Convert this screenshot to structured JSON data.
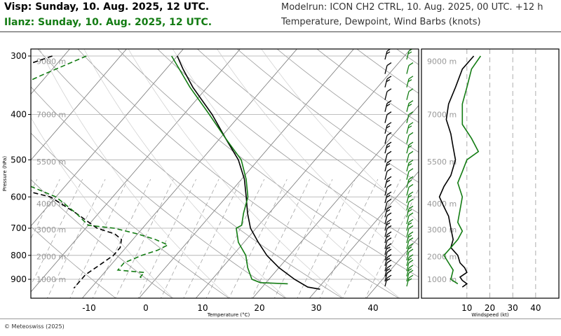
{
  "header": {
    "site1": "Visp: Sunday, 10. Aug. 2025, 12 UTC.",
    "site2": "Ilanz: Sunday, 10. Aug. 2025, 12 UTC.",
    "model": "Modelrun: ICON CH2 CTRL, 10. Aug. 2025, 00 UTC. +12 h",
    "desc": "Temperature, Dewpoint, Wind Barbs (knots)",
    "site1_color": "#000000",
    "site2_color": "#137c13"
  },
  "copyright": "© Meteoswiss (2025)",
  "chart_data": [
    {
      "type": "line",
      "subtype": "skew-t log-p diagram",
      "xlabel": "Temperature (°C)",
      "ylabel": "Pressure (hPa)",
      "xlim": [
        -20,
        48
      ],
      "ylim": [
        950,
        295
      ],
      "y_scale": "log",
      "x_ticks": [
        "-10",
        "0",
        "10",
        "20",
        "30",
        "40"
      ],
      "y_ticks": [
        "300",
        "400",
        "500",
        "600",
        "700",
        "800",
        "900"
      ],
      "height_labels": [
        "9000 m",
        "7000 m",
        "5500 m",
        "4000 m",
        "3000 m",
        "2000 m",
        "1000 m"
      ],
      "height_pressures": [
        308,
        400,
        505,
        620,
        705,
        805,
        900
      ],
      "series": [
        {
          "name": "Visp",
          "color": "#000000",
          "temperature": [
            [
              300,
              -30
            ],
            [
              320,
              -27
            ],
            [
              350,
              -22.5
            ],
            [
              400,
              -15
            ],
            [
              450,
              -9
            ],
            [
              500,
              -3.5
            ],
            [
              550,
              0.5
            ],
            [
              600,
              3.5
            ],
            [
              650,
              6.2
            ],
            [
              700,
              9
            ],
            [
              750,
              12.5
            ],
            [
              800,
              16
            ],
            [
              850,
              20
            ],
            [
              900,
              24.5
            ],
            [
              935,
              28
            ],
            [
              945,
              30.5
            ]
          ],
          "dewpoint": [
            [
              300,
              -52
            ],
            [
              330,
              -59
            ],
            [
              345,
              -62
            ],
            [
              370,
              -55
            ],
            [
              390,
              -53
            ],
            [
              420,
              -49
            ],
            [
              440,
              -54
            ],
            [
              460,
              -50
            ],
            [
              490,
              -42
            ],
            [
              520,
              -40
            ],
            [
              560,
              -43
            ],
            [
              600,
              -31
            ],
            [
              650,
              -24
            ],
            [
              700,
              -18
            ],
            [
              720,
              -14
            ],
            [
              740,
              -12
            ],
            [
              770,
              -11
            ],
            [
              800,
              -11
            ],
            [
              840,
              -12
            ],
            [
              880,
              -13
            ],
            [
              920,
              -13
            ],
            [
              940,
              -13
            ]
          ]
        },
        {
          "name": "Ilanz",
          "color": "#137c13",
          "temperature": [
            [
              300,
              -31
            ],
            [
              350,
              -23
            ],
            [
              400,
              -15.5
            ],
            [
              450,
              -9
            ],
            [
              500,
              -3
            ],
            [
              550,
              0.8
            ],
            [
              600,
              3.8
            ],
            [
              650,
              5.5
            ],
            [
              690,
              7
            ],
            [
              700,
              6.5
            ],
            [
              750,
              9
            ],
            [
              800,
              12.3
            ],
            [
              850,
              14.5
            ],
            [
              900,
              17
            ],
            [
              915,
              19
            ],
            [
              920,
              24
            ]
          ],
          "dewpoint": [
            [
              300,
              -46
            ],
            [
              330,
              -51
            ],
            [
              360,
              -55
            ],
            [
              400,
              -54
            ],
            [
              430,
              -53
            ],
            [
              460,
              -50
            ],
            [
              500,
              -43
            ],
            [
              540,
              -44
            ],
            [
              570,
              -36
            ],
            [
              600,
              -30
            ],
            [
              650,
              -24
            ],
            [
              690,
              -20
            ],
            [
              700,
              -15
            ],
            [
              720,
              -10
            ],
            [
              740,
              -6
            ],
            [
              760,
              -3
            ],
            [
              780,
              -4
            ],
            [
              800,
              -6
            ],
            [
              830,
              -8
            ],
            [
              860,
              -8
            ],
            [
              870,
              -3
            ],
            [
              890,
              -3
            ],
            [
              900,
              -2
            ]
          ]
        }
      ]
    },
    {
      "type": "line",
      "subtype": "wind speed profile",
      "xlabel": "Windspeed (kt)",
      "ylim": [
        950,
        295
      ],
      "x_ticks": [
        "10",
        "20",
        "30",
        "40"
      ],
      "xlim": [
        -8,
        48
      ],
      "height_labels": [
        "9000 m",
        "7000 m",
        "5500 m",
        "4000 m",
        "3000 m",
        "2000 m",
        "1000 m"
      ],
      "series": [
        {
          "name": "Visp",
          "color": "#000000",
          "points": [
            [
              300,
              13
            ],
            [
              320,
              8
            ],
            [
              350,
              5
            ],
            [
              380,
              2
            ],
            [
              410,
              1
            ],
            [
              440,
              3
            ],
            [
              470,
              4
            ],
            [
              500,
              5
            ],
            [
              540,
              3
            ],
            [
              570,
              0
            ],
            [
              600,
              -2
            ],
            [
              630,
              0
            ],
            [
              660,
              2
            ],
            [
              700,
              3
            ],
            [
              740,
              4
            ],
            [
              770,
              3
            ],
            [
              800,
              6
            ],
            [
              830,
              7
            ],
            [
              850,
              9
            ],
            [
              870,
              10
            ],
            [
              890,
              7
            ],
            [
              905,
              8
            ],
            [
              920,
              10
            ],
            [
              935,
              8
            ]
          ]
        },
        {
          "name": "Ilanz",
          "color": "#137c13",
          "points": [
            [
              300,
              16
            ],
            [
              320,
              12
            ],
            [
              350,
              10
            ],
            [
              380,
              8
            ],
            [
              420,
              8
            ],
            [
              450,
              12
            ],
            [
              480,
              15
            ],
            [
              500,
              10
            ],
            [
              530,
              8
            ],
            [
              560,
              6
            ],
            [
              600,
              8
            ],
            [
              640,
              7
            ],
            [
              680,
              6
            ],
            [
              710,
              8
            ],
            [
              740,
              6
            ],
            [
              770,
              3
            ],
            [
              800,
              0
            ],
            [
              830,
              2
            ],
            [
              860,
              4
            ],
            [
              900,
              3
            ],
            [
              920,
              6
            ]
          ]
        }
      ]
    }
  ]
}
